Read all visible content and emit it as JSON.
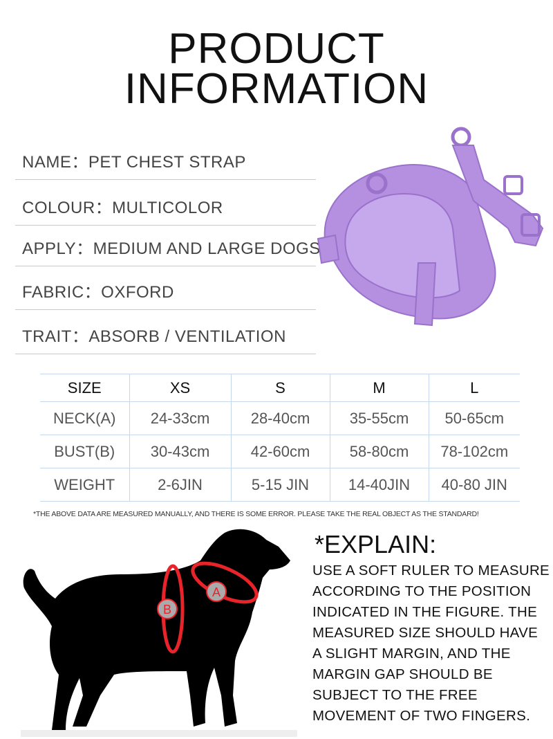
{
  "title": {
    "line1": "PRODUCT",
    "line2": "INFORMATION"
  },
  "info": [
    {
      "text": "NAME：PET CHEST STRAP"
    },
    {
      "text": "COLOUR：MULTICOLOR"
    },
    {
      "text": "APPLY：MEDIUM AND LARGE DOGS"
    },
    {
      "text": "FABRIC：OXFORD"
    },
    {
      "text": "TRAIT：ABSORB / VENTILATION"
    }
  ],
  "product_color": "#b58fe0",
  "size_table": {
    "headers": [
      "SIZE",
      "XS",
      "S",
      "M",
      "L"
    ],
    "rows": [
      [
        "NECK(A)",
        "24-33cm",
        "28-40cm",
        "35-55cm",
        "50-65cm"
      ],
      [
        "BUST(B)",
        "30-43cm",
        "42-60cm",
        "58-80cm",
        "78-102cm"
      ],
      [
        "WEIGHT",
        "2-6JIN",
        "5-15 JIN",
        "14-40JIN",
        "40-80 JIN"
      ]
    ]
  },
  "note": "*THE ABOVE DATA ARE MEASURED MANUALLY, AND THERE IS SOME ERROR. PLEASE TAKE THE REAL OBJECT AS THE STANDARD!",
  "explain": {
    "title": "*EXPLAIN:",
    "lines": [
      "USE A SOFT RULER TO MEASURE",
      "ACCORDING TO THE POSITION",
      "INDICATED IN THE FIGURE. THE",
      "MEASURED SIZE SHOULD HAVE",
      "A SLIGHT MARGIN, AND THE",
      "MARGIN GAP SHOULD BE",
      "SUBJECT TO THE FREE",
      "MOVEMENT OF TWO FINGERS."
    ]
  },
  "diagram": {
    "label_a": "A",
    "label_b": "B",
    "measure_color": "#e8242a"
  }
}
